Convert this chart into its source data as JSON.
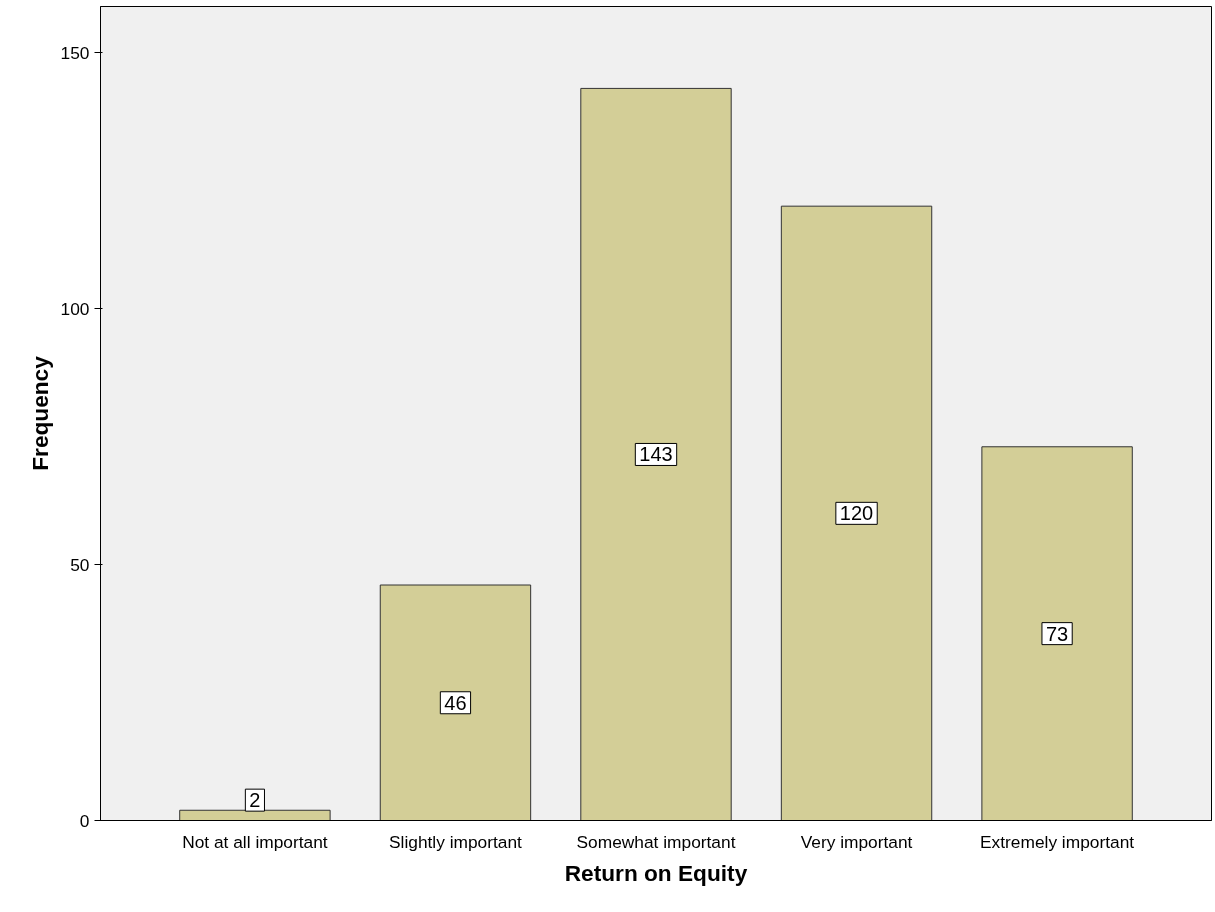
{
  "chart_data": {
    "type": "bar",
    "xlabel": "Return on Equity",
    "ylabel": "Frequency",
    "categories": [
      "Not at all important",
      "Slightly important",
      "Somewhat important",
      "Very important",
      "Extremely important"
    ],
    "values": [
      2,
      46,
      143,
      120,
      73
    ],
    "color": "#d3ce97",
    "ylim": [
      0,
      159
    ],
    "yticks": [
      0,
      50,
      100,
      150
    ],
    "grid": false,
    "data_labels": true
  }
}
